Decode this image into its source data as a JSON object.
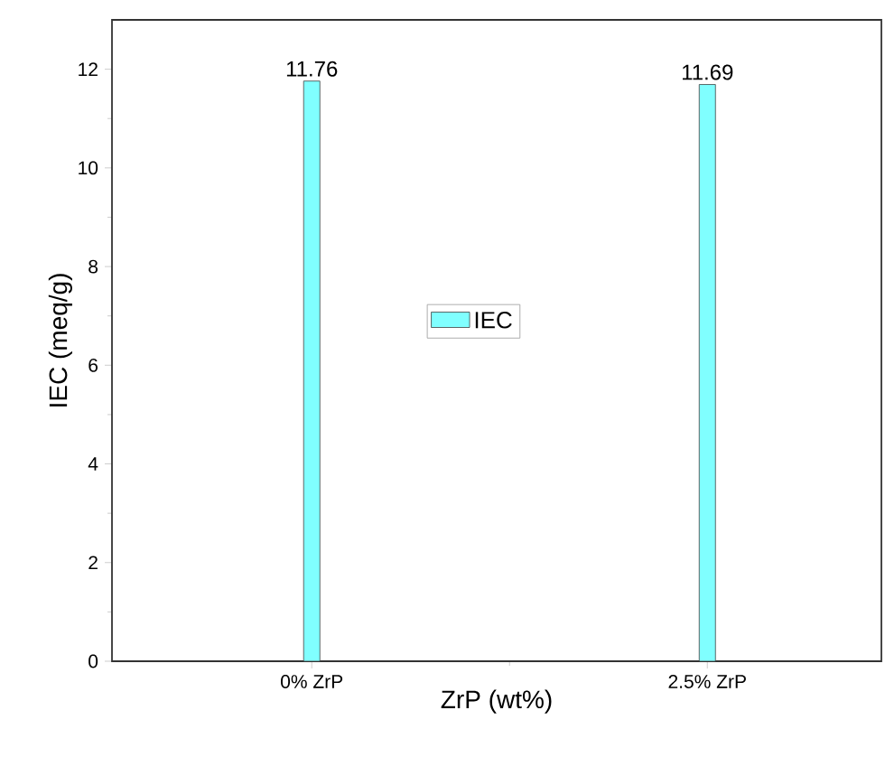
{
  "chart_data": {
    "type": "bar",
    "xlabel": "ZrP (wt%)",
    "ylabel": "IEC (meq/g)",
    "categories": [
      "0% ZrP",
      "2.5% ZrP"
    ],
    "series": [
      {
        "name": "IEC",
        "color": "#80ffff",
        "values": [
          11.76,
          11.69
        ]
      }
    ],
    "ylim": [
      0,
      13
    ],
    "yticks": [
      0,
      2,
      4,
      6,
      8,
      10,
      12
    ],
    "data_labels": true,
    "legend": "center"
  }
}
